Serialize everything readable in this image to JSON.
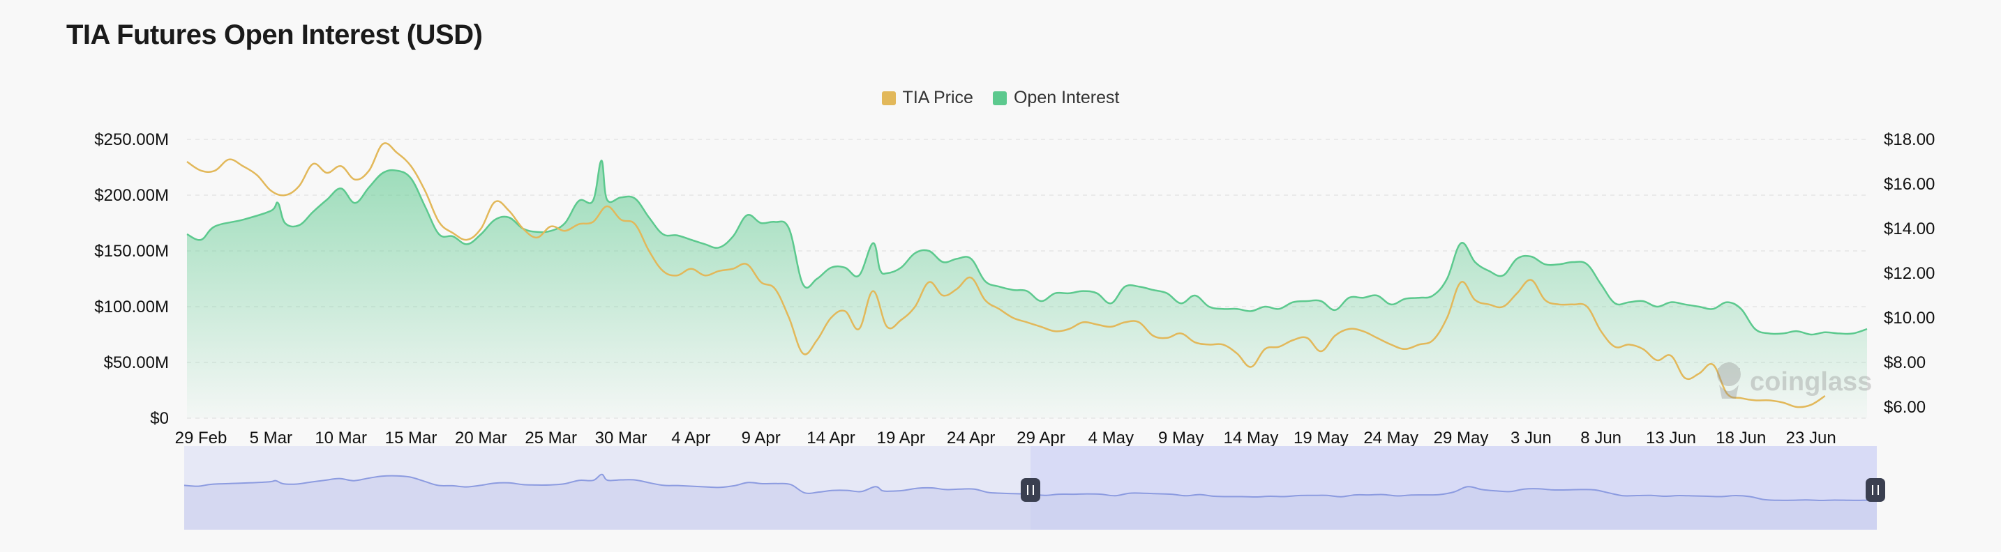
{
  "title": "TIA Futures Open Interest (USD)",
  "legend": {
    "price_label": "TIA Price",
    "oi_label": "Open Interest"
  },
  "colors": {
    "price": "#e2b85a",
    "oi": "#5cc98e",
    "navigator_line": "#8c9be0",
    "navigator_fill": "#e6e8f6",
    "navigator_selected": "#d8dbf6",
    "background": "#f8f8f8"
  },
  "watermark": "coinglass",
  "chart_data": {
    "type": "area",
    "x_ticks": [
      "29 Feb",
      "5 Mar",
      "10 Mar",
      "15 Mar",
      "20 Mar",
      "25 Mar",
      "30 Mar",
      "4 Apr",
      "9 Apr",
      "14 Apr",
      "19 Apr",
      "24 Apr",
      "29 Apr",
      "4 May",
      "9 May",
      "14 May",
      "19 May",
      "24 May",
      "29 May",
      "3 Jun",
      "8 Jun",
      "13 Jun",
      "18 Jun",
      "23 Jun"
    ],
    "y_left_ticks": [
      "$0",
      "$50.00M",
      "$100.00M",
      "$150.00M",
      "$200.00M",
      "$250.00M"
    ],
    "y_right_ticks": [
      "$6.00",
      "$8.00",
      "$10.00",
      "$12.00",
      "$14.00",
      "$16.00",
      "$18.00"
    ],
    "y_left_range": [
      0,
      250
    ],
    "y_left_unit": "USD millions",
    "y_right_range": [
      5.5,
      18
    ],
    "x_range_days": [
      0,
      120
    ],
    "grid": true,
    "legend_position": "top-center",
    "series": [
      {
        "name": "Open Interest",
        "type": "area",
        "axis": "left",
        "points": [
          [
            0,
            165
          ],
          [
            1,
            160
          ],
          [
            2,
            172
          ],
          [
            4,
            178
          ],
          [
            6,
            186
          ],
          [
            6.5,
            193
          ],
          [
            7,
            175
          ],
          [
            8,
            173
          ],
          [
            9,
            185
          ],
          [
            10,
            196
          ],
          [
            11,
            206
          ],
          [
            12,
            193
          ],
          [
            13,
            207
          ],
          [
            14,
            220
          ],
          [
            15,
            222
          ],
          [
            16,
            215
          ],
          [
            17,
            190
          ],
          [
            18,
            165
          ],
          [
            19,
            163
          ],
          [
            20,
            156
          ],
          [
            21,
            165
          ],
          [
            22,
            178
          ],
          [
            23,
            180
          ],
          [
            24,
            170
          ],
          [
            25,
            167
          ],
          [
            26,
            168
          ],
          [
            27,
            175
          ],
          [
            28,
            195
          ],
          [
            29,
            195
          ],
          [
            29.6,
            231
          ],
          [
            30,
            196
          ],
          [
            31,
            198
          ],
          [
            32,
            197
          ],
          [
            33,
            180
          ],
          [
            34,
            165
          ],
          [
            35,
            164
          ],
          [
            36,
            160
          ],
          [
            37,
            156
          ],
          [
            38,
            153
          ],
          [
            39,
            163
          ],
          [
            40,
            182
          ],
          [
            41,
            175
          ],
          [
            42,
            176
          ],
          [
            43,
            170
          ],
          [
            44,
            120
          ],
          [
            45,
            125
          ],
          [
            46,
            135
          ],
          [
            47,
            135
          ],
          [
            48,
            128
          ],
          [
            49,
            157
          ],
          [
            49.5,
            133
          ],
          [
            50,
            130
          ],
          [
            51,
            135
          ],
          [
            52,
            148
          ],
          [
            53,
            150
          ],
          [
            54,
            140
          ],
          [
            55,
            143
          ],
          [
            56,
            143
          ],
          [
            57,
            123
          ],
          [
            58,
            118
          ],
          [
            59,
            115
          ],
          [
            60,
            114
          ],
          [
            61,
            105
          ],
          [
            62,
            112
          ],
          [
            63,
            112
          ],
          [
            64,
            114
          ],
          [
            65,
            112
          ],
          [
            66,
            103
          ],
          [
            67,
            118
          ],
          [
            68,
            118
          ],
          [
            69,
            115
          ],
          [
            70,
            112
          ],
          [
            71,
            103
          ],
          [
            72,
            110
          ],
          [
            73,
            100
          ],
          [
            74,
            98
          ],
          [
            75,
            98
          ],
          [
            76,
            96
          ],
          [
            77,
            100
          ],
          [
            78,
            98
          ],
          [
            79,
            104
          ],
          [
            80,
            105
          ],
          [
            81,
            105
          ],
          [
            82,
            97
          ],
          [
            83,
            108
          ],
          [
            84,
            108
          ],
          [
            85,
            110
          ],
          [
            86,
            102
          ],
          [
            87,
            107
          ],
          [
            88,
            108
          ],
          [
            89,
            110
          ],
          [
            90,
            125
          ],
          [
            91,
            157
          ],
          [
            92,
            140
          ],
          [
            93,
            132
          ],
          [
            94,
            128
          ],
          [
            95,
            143
          ],
          [
            96,
            145
          ],
          [
            97,
            138
          ],
          [
            98,
            138
          ],
          [
            99,
            140
          ],
          [
            100,
            138
          ],
          [
            101,
            120
          ],
          [
            102,
            103
          ],
          [
            103,
            104
          ],
          [
            104,
            105
          ],
          [
            105,
            100
          ],
          [
            106,
            104
          ],
          [
            107,
            102
          ],
          [
            108,
            100
          ],
          [
            109,
            98
          ],
          [
            110,
            104
          ],
          [
            111,
            98
          ],
          [
            112,
            80
          ],
          [
            113,
            76
          ],
          [
            114,
            76
          ],
          [
            115,
            78
          ],
          [
            116,
            75
          ],
          [
            117,
            77
          ],
          [
            118,
            76
          ],
          [
            119,
            76
          ],
          [
            120,
            80
          ]
        ]
      },
      {
        "name": "TIA Price",
        "type": "line",
        "axis": "right",
        "points": [
          [
            0,
            17.0
          ],
          [
            1,
            16.6
          ],
          [
            2,
            16.6
          ],
          [
            3,
            17.1
          ],
          [
            4,
            16.8
          ],
          [
            5,
            16.4
          ],
          [
            6,
            15.7
          ],
          [
            7,
            15.5
          ],
          [
            8,
            15.9
          ],
          [
            9,
            16.9
          ],
          [
            10,
            16.5
          ],
          [
            11,
            16.8
          ],
          [
            12,
            16.2
          ],
          [
            13,
            16.6
          ],
          [
            14,
            17.8
          ],
          [
            15,
            17.4
          ],
          [
            16,
            16.8
          ],
          [
            17,
            15.7
          ],
          [
            18,
            14.3
          ],
          [
            19,
            13.8
          ],
          [
            20,
            13.5
          ],
          [
            21,
            14.0
          ],
          [
            22,
            15.2
          ],
          [
            23,
            14.8
          ],
          [
            24,
            14.0
          ],
          [
            25,
            13.6
          ],
          [
            26,
            14.1
          ],
          [
            27,
            13.9
          ],
          [
            28,
            14.2
          ],
          [
            29,
            14.3
          ],
          [
            30,
            15.0
          ],
          [
            31,
            14.4
          ],
          [
            32,
            14.2
          ],
          [
            33,
            13.0
          ],
          [
            34,
            12.1
          ],
          [
            35,
            11.9
          ],
          [
            36,
            12.2
          ],
          [
            37,
            11.9
          ],
          [
            38,
            12.1
          ],
          [
            39,
            12.2
          ],
          [
            40,
            12.4
          ],
          [
            41,
            11.6
          ],
          [
            42,
            11.3
          ],
          [
            43,
            10.0
          ],
          [
            44,
            8.4
          ],
          [
            45,
            9.0
          ],
          [
            46,
            10.0
          ],
          [
            47,
            10.3
          ],
          [
            48,
            9.5
          ],
          [
            49,
            11.2
          ],
          [
            50,
            9.6
          ],
          [
            51,
            9.9
          ],
          [
            52,
            10.5
          ],
          [
            53,
            11.6
          ],
          [
            54,
            11.0
          ],
          [
            55,
            11.3
          ],
          [
            56,
            11.8
          ],
          [
            57,
            10.8
          ],
          [
            58,
            10.4
          ],
          [
            59,
            10.0
          ],
          [
            60,
            9.8
          ],
          [
            61,
            9.6
          ],
          [
            62,
            9.4
          ],
          [
            63,
            9.5
          ],
          [
            64,
            9.8
          ],
          [
            65,
            9.7
          ],
          [
            66,
            9.6
          ],
          [
            67,
            9.8
          ],
          [
            68,
            9.8
          ],
          [
            69,
            9.2
          ],
          [
            70,
            9.1
          ],
          [
            71,
            9.3
          ],
          [
            72,
            8.9
          ],
          [
            73,
            8.8
          ],
          [
            74,
            8.8
          ],
          [
            75,
            8.4
          ],
          [
            76,
            7.8
          ],
          [
            77,
            8.6
          ],
          [
            78,
            8.7
          ],
          [
            79,
            9.0
          ],
          [
            80,
            9.1
          ],
          [
            81,
            8.5
          ],
          [
            82,
            9.2
          ],
          [
            83,
            9.5
          ],
          [
            84,
            9.4
          ],
          [
            85,
            9.1
          ],
          [
            86,
            8.8
          ],
          [
            87,
            8.6
          ],
          [
            88,
            8.8
          ],
          [
            89,
            9.0
          ],
          [
            90,
            10.0
          ],
          [
            91,
            11.6
          ],
          [
            92,
            10.8
          ],
          [
            93,
            10.6
          ],
          [
            94,
            10.5
          ],
          [
            95,
            11.1
          ],
          [
            96,
            11.7
          ],
          [
            97,
            10.8
          ],
          [
            98,
            10.6
          ],
          [
            99,
            10.6
          ],
          [
            100,
            10.5
          ],
          [
            101,
            9.4
          ],
          [
            102,
            8.7
          ],
          [
            103,
            8.8
          ],
          [
            104,
            8.6
          ],
          [
            105,
            8.1
          ],
          [
            106,
            8.3
          ],
          [
            107,
            7.3
          ],
          [
            108,
            7.5
          ],
          [
            109,
            7.9
          ],
          [
            110,
            6.6
          ],
          [
            111,
            6.4
          ],
          [
            112,
            6.3
          ],
          [
            113,
            6.3
          ],
          [
            114,
            6.2
          ],
          [
            115,
            6.0
          ],
          [
            116,
            6.1
          ],
          [
            117,
            6.5
          ]
        ]
      }
    ],
    "navigator": {
      "selected_range_fraction": [
        0.5,
        1.0
      ]
    }
  }
}
